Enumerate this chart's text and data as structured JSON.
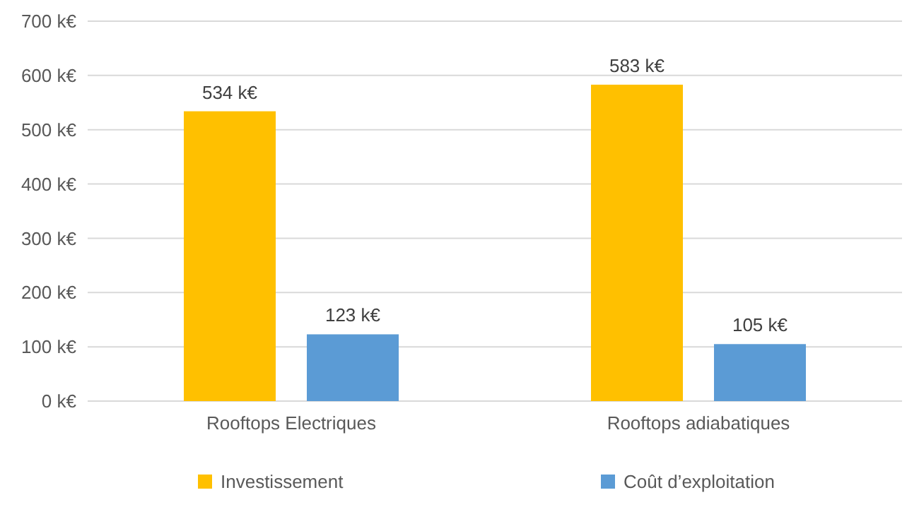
{
  "chart_data": {
    "type": "bar",
    "categories": [
      "Rooftops Electriques",
      "Rooftops adiabatiques"
    ],
    "series": [
      {
        "name": "Investissement",
        "color": "#ffc000",
        "values": [
          534,
          583
        ],
        "value_labels": [
          "534 k€",
          "583 k€"
        ]
      },
      {
        "name": "Coût d’exploitation",
        "color": "#5b9bd5",
        "values": [
          123,
          105
        ],
        "value_labels": [
          "123 k€",
          "105 k€"
        ]
      }
    ],
    "ylim": [
      0,
      700
    ],
    "yticks": [
      {
        "value": 0,
        "label": "0 k€"
      },
      {
        "value": 100,
        "label": "100 k€"
      },
      {
        "value": 200,
        "label": "200 k€"
      },
      {
        "value": 300,
        "label": "300 k€"
      },
      {
        "value": 400,
        "label": "400 k€"
      },
      {
        "value": 500,
        "label": "500 k€"
      },
      {
        "value": 600,
        "label": "600 k€"
      },
      {
        "value": 700,
        "label": "700 k€"
      }
    ],
    "grid": "y",
    "legend": "bottom"
  }
}
